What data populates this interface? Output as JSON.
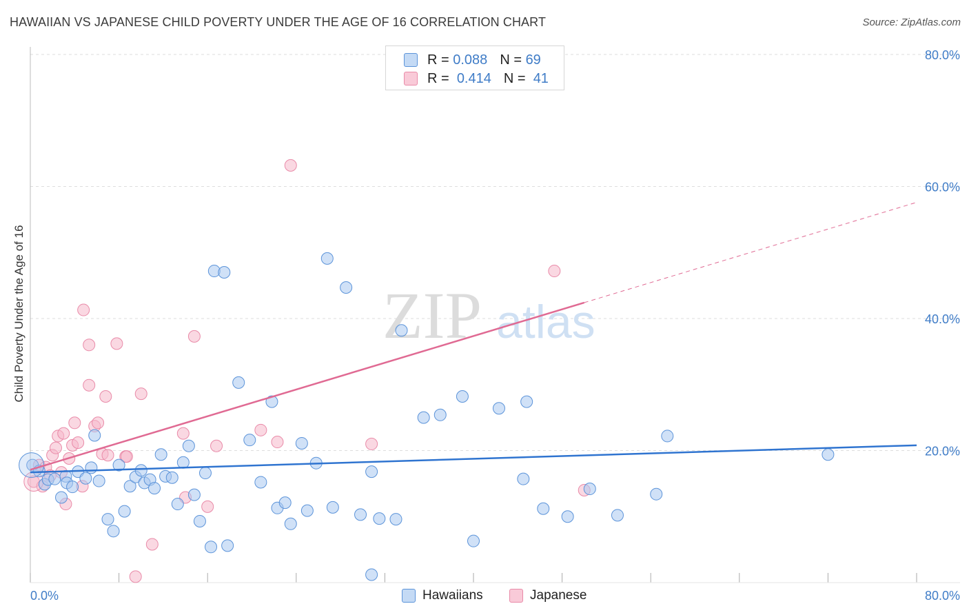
{
  "title": "HAWAIIAN VS JAPANESE CHILD POVERTY UNDER THE AGE OF 16 CORRELATION CHART",
  "source": "Source: ZipAtlas.com",
  "watermark": {
    "zip": "ZIP",
    "atlas": "atlas"
  },
  "legend": {
    "rows": [
      {
        "r_label": "R =",
        "r_value": "0.088",
        "n_label": "N =",
        "n_value": "69"
      },
      {
        "r_label": "R =",
        "r_value": "0.414",
        "n_label": "N =",
        "n_value": "41"
      }
    ]
  },
  "bottom_legend": {
    "series1": "Hawaiians",
    "series2": "Japanese"
  },
  "colors": {
    "hawaiians_fill": "#a9c9f0",
    "hawaiians_stroke": "#5b93d9",
    "hawaiians_line": "#2f74d0",
    "japanese_fill": "#f6b8cb",
    "japanese_stroke": "#e98aa8",
    "japanese_line": "#e06a93",
    "tick": "#3f7cc7",
    "grid": "#dddddd"
  },
  "chart_data": {
    "type": "scatter",
    "title": "HAWAIIAN VS JAPANESE CHILD POVERTY UNDER THE AGE OF 16 CORRELATION CHART",
    "xlabel": "",
    "ylabel": "Child Poverty Under the Age of 16",
    "xlim": [
      0,
      80
    ],
    "ylim": [
      0,
      80
    ],
    "x_tick_labels": [
      "0.0%",
      "80.0%"
    ],
    "y_ticks": [
      20,
      40,
      60,
      80
    ],
    "y_tick_labels": [
      "20.0%",
      "40.0%",
      "60.0%",
      "80.0%"
    ],
    "grid": true,
    "legend_position": "top-center",
    "series": [
      {
        "name": "Hawaiians",
        "r": 0.088,
        "n": 69,
        "trend": {
          "x": [
            0,
            80
          ],
          "y": [
            16.7,
            20.8
          ],
          "dashed_from": null
        },
        "points": [
          [
            0.2,
            17.8
          ],
          [
            0.8,
            16.9
          ],
          [
            1.3,
            14.9
          ],
          [
            1.6,
            15.6
          ],
          [
            2.2,
            15.7
          ],
          [
            2.8,
            12.9
          ],
          [
            3.2,
            16.1
          ],
          [
            3.3,
            15.1
          ],
          [
            3.8,
            14.5
          ],
          [
            4.3,
            16.8
          ],
          [
            5.0,
            15.8
          ],
          [
            5.5,
            17.4
          ],
          [
            5.8,
            22.3
          ],
          [
            6.2,
            15.4
          ],
          [
            7.0,
            9.6
          ],
          [
            7.5,
            7.8
          ],
          [
            8.0,
            17.8
          ],
          [
            8.5,
            10.8
          ],
          [
            9.0,
            14.6
          ],
          [
            9.5,
            16.0
          ],
          [
            10.0,
            17.0
          ],
          [
            10.3,
            15.1
          ],
          [
            10.8,
            15.6
          ],
          [
            11.2,
            14.3
          ],
          [
            11.8,
            19.4
          ],
          [
            12.2,
            16.1
          ],
          [
            12.8,
            15.9
          ],
          [
            13.3,
            11.9
          ],
          [
            13.8,
            18.2
          ],
          [
            14.3,
            20.7
          ],
          [
            14.8,
            13.3
          ],
          [
            15.3,
            9.3
          ],
          [
            15.8,
            16.6
          ],
          [
            16.3,
            5.4
          ],
          [
            16.6,
            47.2
          ],
          [
            17.5,
            47.0
          ],
          [
            17.8,
            5.6
          ],
          [
            18.8,
            30.3
          ],
          [
            19.8,
            21.6
          ],
          [
            20.8,
            15.2
          ],
          [
            21.8,
            27.4
          ],
          [
            22.3,
            11.3
          ],
          [
            23.0,
            12.1
          ],
          [
            23.5,
            8.9
          ],
          [
            24.5,
            21.1
          ],
          [
            25.0,
            10.9
          ],
          [
            25.8,
            18.1
          ],
          [
            26.8,
            49.1
          ],
          [
            27.3,
            11.4
          ],
          [
            28.5,
            44.7
          ],
          [
            29.8,
            10.3
          ],
          [
            30.8,
            16.8
          ],
          [
            30.8,
            1.2
          ],
          [
            31.5,
            9.7
          ],
          [
            33.0,
            9.6
          ],
          [
            33.5,
            38.2
          ],
          [
            35.5,
            25.0
          ],
          [
            37.0,
            25.4
          ],
          [
            39.0,
            28.2
          ],
          [
            40.0,
            6.3
          ],
          [
            42.3,
            26.4
          ],
          [
            44.5,
            15.7
          ],
          [
            44.8,
            27.4
          ],
          [
            46.3,
            11.2
          ],
          [
            48.5,
            10.0
          ],
          [
            50.5,
            14.2
          ],
          [
            53.0,
            10.2
          ],
          [
            56.5,
            13.4
          ],
          [
            57.5,
            22.2
          ],
          [
            72.0,
            19.4
          ]
        ]
      },
      {
        "name": "Japanese",
        "r": 0.414,
        "n": 41,
        "trend": {
          "x": [
            0,
            80
          ],
          "y": [
            17.1,
            57.6
          ],
          "dashed_from": 50
        },
        "points": [
          [
            0.3,
            15.3
          ],
          [
            0.8,
            17.8
          ],
          [
            1.1,
            14.6
          ],
          [
            1.4,
            17.5
          ],
          [
            1.8,
            16.2
          ],
          [
            2.0,
            19.3
          ],
          [
            2.3,
            20.4
          ],
          [
            2.5,
            22.2
          ],
          [
            2.8,
            16.7
          ],
          [
            3.0,
            22.6
          ],
          [
            3.2,
            11.9
          ],
          [
            3.5,
            18.8
          ],
          [
            3.8,
            20.8
          ],
          [
            4.0,
            24.2
          ],
          [
            4.3,
            21.2
          ],
          [
            4.7,
            14.6
          ],
          [
            4.8,
            41.3
          ],
          [
            5.3,
            36.0
          ],
          [
            5.3,
            29.9
          ],
          [
            5.8,
            23.7
          ],
          [
            6.1,
            24.2
          ],
          [
            6.5,
            19.5
          ],
          [
            6.8,
            28.2
          ],
          [
            7.0,
            19.3
          ],
          [
            7.8,
            36.2
          ],
          [
            8.6,
            19.1
          ],
          [
            8.7,
            19.1
          ],
          [
            9.5,
            0.9
          ],
          [
            10.0,
            28.6
          ],
          [
            11.0,
            5.8
          ],
          [
            13.8,
            22.6
          ],
          [
            14.0,
            12.9
          ],
          [
            14.8,
            37.3
          ],
          [
            16.0,
            11.5
          ],
          [
            16.8,
            20.7
          ],
          [
            20.8,
            23.1
          ],
          [
            22.3,
            21.3
          ],
          [
            23.5,
            63.2
          ],
          [
            30.8,
            21.0
          ],
          [
            47.3,
            47.2
          ],
          [
            50.0,
            14.0
          ]
        ]
      }
    ]
  }
}
